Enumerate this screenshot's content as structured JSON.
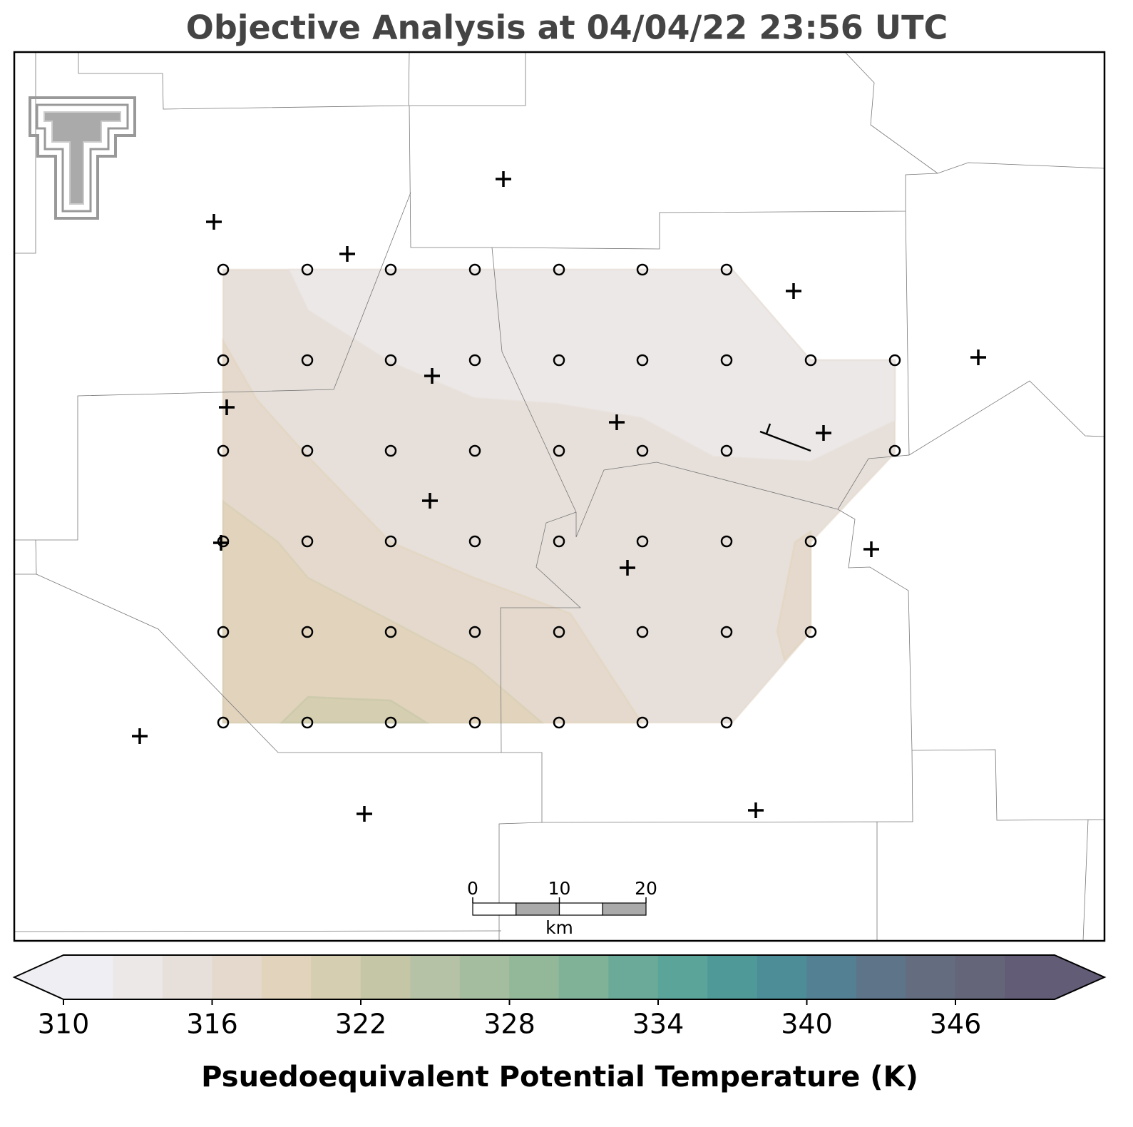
{
  "title": "Objective Analysis at 04/04/22 23:56 UTC",
  "colorbar": {
    "label": "Psuedoequivalent Potential Temperature (K)",
    "lim": [
      310,
      350
    ],
    "ticks": [
      310,
      316,
      322,
      328,
      334,
      340,
      346
    ],
    "levels": [
      310,
      312,
      314,
      316,
      318,
      320,
      322,
      324,
      326,
      328,
      330,
      332,
      334,
      336,
      338,
      340,
      342,
      344,
      346,
      348,
      350
    ],
    "colors": [
      "#efeef2",
      "#ece8e7",
      "#e7e0da",
      "#e4d9cc",
      "#e2d3bd",
      "#d5ceb0",
      "#c5c6a6",
      "#b6c2a5",
      "#a5bd9f",
      "#93b799",
      "#80b298",
      "#6baa98",
      "#5aa49a",
      "#4f9998",
      "#4d8d97",
      "#548093",
      "#5d7489",
      "#646c80",
      "#656579",
      "#625c76"
    ]
  },
  "scale_bar": {
    "ticks": [
      0,
      10,
      20
    ],
    "unit": "km"
  }
}
